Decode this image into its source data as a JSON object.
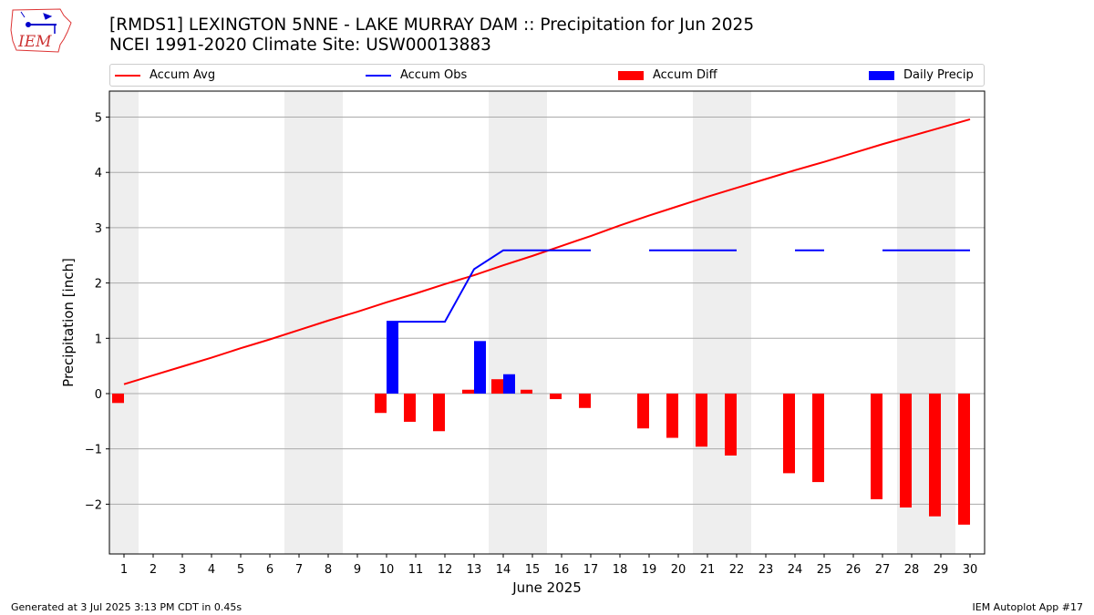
{
  "header": {
    "title_line1": "[RMDS1] LEXINGTON 5NNE - LAKE MURRAY DAM :: Precipitation for Jun 2025",
    "title_line2": "NCEI 1991-2020 Climate Site: USW00013883"
  },
  "logo": {
    "text": "IEM",
    "icon": "iowa-state-weather-logo"
  },
  "footer": {
    "left": "Generated at 3 Jul 2025 3:13 PM CDT in 0.45s",
    "right": "IEM Autoplot App #17"
  },
  "colors": {
    "accum_avg": "#ff0000",
    "accum_obs": "#0000ff",
    "accum_diff": "#ff0000",
    "daily_precip": "#0000ff",
    "weekend_shade": "#eeeeee",
    "grid": "#aaaaaa"
  },
  "chart_data": {
    "type": "bar",
    "xlabel": "June 2025",
    "ylabel": "Precipitation [inch]",
    "ylim": [
      -2.9,
      5.47
    ],
    "yticks": [
      -2,
      -1,
      0,
      1,
      2,
      3,
      4,
      5
    ],
    "ytick_labels": [
      "−2",
      "−1",
      "0",
      "1",
      "2",
      "3",
      "4",
      "5"
    ],
    "grid": true,
    "legend_position": "top",
    "x": [
      1,
      2,
      3,
      4,
      5,
      6,
      7,
      8,
      9,
      10,
      11,
      12,
      13,
      14,
      15,
      16,
      17,
      18,
      19,
      20,
      21,
      22,
      23,
      24,
      25,
      26,
      27,
      28,
      29,
      30
    ],
    "weekend_days": [
      1,
      7,
      8,
      14,
      15,
      21,
      22,
      28,
      29
    ],
    "legend": [
      "Accum Avg",
      "Accum Obs",
      "Accum Diff",
      "Daily Precip"
    ],
    "series": [
      {
        "name": "Accum Avg",
        "type": "line",
        "values": [
          0.17,
          0.33,
          0.49,
          0.65,
          0.82,
          0.98,
          1.15,
          1.32,
          1.48,
          1.65,
          1.81,
          1.98,
          2.14,
          2.32,
          2.49,
          2.67,
          2.85,
          3.04,
          3.22,
          3.39,
          3.56,
          3.72,
          3.88,
          4.04,
          4.19,
          4.35,
          4.51,
          4.66,
          4.81,
          4.96
        ]
      },
      {
        "name": "Accum Obs",
        "type": "line",
        "values": [
          null,
          null,
          null,
          null,
          null,
          null,
          null,
          null,
          null,
          1.3,
          1.3,
          1.3,
          2.25,
          2.59,
          2.59,
          2.59,
          2.59,
          null,
          2.59,
          2.59,
          2.59,
          2.59,
          null,
          2.59,
          2.59,
          null,
          2.59,
          2.59,
          2.59,
          2.59
        ]
      },
      {
        "name": "Accum Diff",
        "type": "bar",
        "values": [
          -0.17,
          null,
          null,
          null,
          null,
          null,
          null,
          null,
          null,
          -0.35,
          -0.51,
          -0.68,
          0.07,
          0.26,
          0.07,
          -0.1,
          -0.26,
          null,
          -0.63,
          -0.8,
          -0.96,
          -1.12,
          null,
          -1.44,
          -1.6,
          null,
          -1.91,
          -2.06,
          -2.22,
          -2.37
        ]
      },
      {
        "name": "Daily Precip",
        "type": "bar",
        "values": [
          null,
          null,
          null,
          null,
          null,
          null,
          null,
          null,
          null,
          1.3,
          null,
          null,
          0.95,
          0.35,
          null,
          null,
          null,
          null,
          null,
          null,
          null,
          null,
          null,
          null,
          null,
          null,
          null,
          null,
          null,
          null
        ]
      }
    ]
  }
}
